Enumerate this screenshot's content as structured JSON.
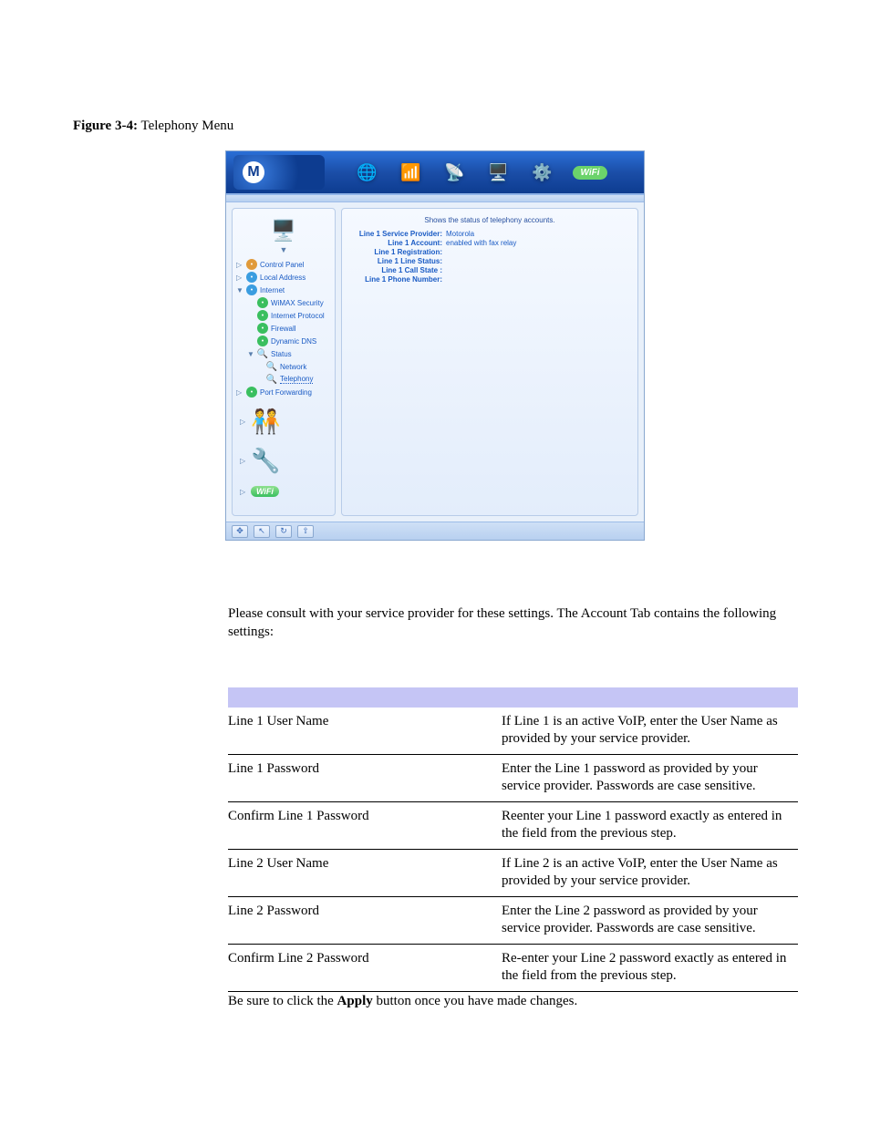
{
  "figure": {
    "label": "Figure 3-4:",
    "title": "Telephony Menu"
  },
  "router": {
    "header_icons": [
      "🌐",
      "📶",
      "📡",
      "🖥️",
      "⚙️",
      "WiFi"
    ],
    "sidebar": {
      "top_icon": "🖥️",
      "items": [
        {
          "twist": "▷",
          "icon_cls": "orange",
          "label": "Control Panel",
          "level": 1
        },
        {
          "twist": "▷",
          "icon_cls": "",
          "label": "Local Address",
          "level": 1
        },
        {
          "twist": "▼",
          "icon_cls": "",
          "label": "Internet",
          "level": 1
        },
        {
          "twist": "",
          "icon_cls": "green",
          "label": "WiMAX Security",
          "level": 2
        },
        {
          "twist": "",
          "icon_cls": "green",
          "label": "Internet Protocol",
          "level": 2
        },
        {
          "twist": "",
          "icon_cls": "green",
          "label": "Firewall",
          "level": 2
        },
        {
          "twist": "",
          "icon_cls": "green",
          "label": "Dynamic DNS",
          "level": 2
        },
        {
          "twist": "▼",
          "icon_cls": "mag",
          "label": "Status",
          "level": 2,
          "mag": true
        },
        {
          "twist": "",
          "icon_cls": "mag",
          "label": "Network",
          "level": 3,
          "mag": true
        },
        {
          "twist": "",
          "icon_cls": "mag",
          "label": "Telephony",
          "level": 3,
          "mag": true,
          "selected": true
        },
        {
          "twist": "▷",
          "icon_cls": "green",
          "label": "Port Forwarding",
          "level": 1
        }
      ],
      "big_icons": [
        "🧑‍🤝‍🧑",
        "🔧",
        "WiFi"
      ]
    },
    "content": {
      "status_head": "Shows the status of telephony accounts.",
      "rows": [
        {
          "k": "Line 1 Service Provider:",
          "v": "Motorola"
        },
        {
          "k": "Line 1 Account:",
          "v": "enabled with fax relay"
        },
        {
          "k": "Line 1 Registration:",
          "v": ""
        },
        {
          "k": "Line 1 Line Status:",
          "v": ""
        },
        {
          "k": "Line 1 Call State :",
          "v": ""
        },
        {
          "k": "Line 1 Phone Number:",
          "v": ""
        }
      ]
    },
    "footer_icons": [
      "✥",
      "↖",
      "↻",
      "⇧"
    ]
  },
  "body_text": "Please consult with your service provider for these settings. The Account Tab contains the following settings:",
  "table": {
    "header_bg": "#c5c5f5",
    "rows": [
      {
        "field": "Line 1 User Name",
        "desc": "If Line 1 is an active VoIP, enter the User Name as provided by your service provider."
      },
      {
        "field": "Line 1 Password",
        "desc": "Enter the Line 1 password as provided by your service provider. Passwords are case sensitive."
      },
      {
        "field": "Confirm Line 1 Password",
        "desc": "Reenter your Line 1 password exactly as entered in the field from the previous step."
      },
      {
        "field": "Line 2 User Name",
        "desc": "If Line 2 is an active VoIP, enter the User Name as provided by your service provider."
      },
      {
        "field": "Line 2 Password",
        "desc": "Enter the Line 2 password as provided by your service provider. Passwords are case sensitive."
      },
      {
        "field": "Confirm Line 2 Password",
        "desc": "Re-enter your Line 2 password exactly as entered in the field from the previous step."
      }
    ]
  },
  "apply_note": {
    "pre": "Be sure to click the ",
    "bold": "Apply",
    "post": " button once you have made changes."
  }
}
